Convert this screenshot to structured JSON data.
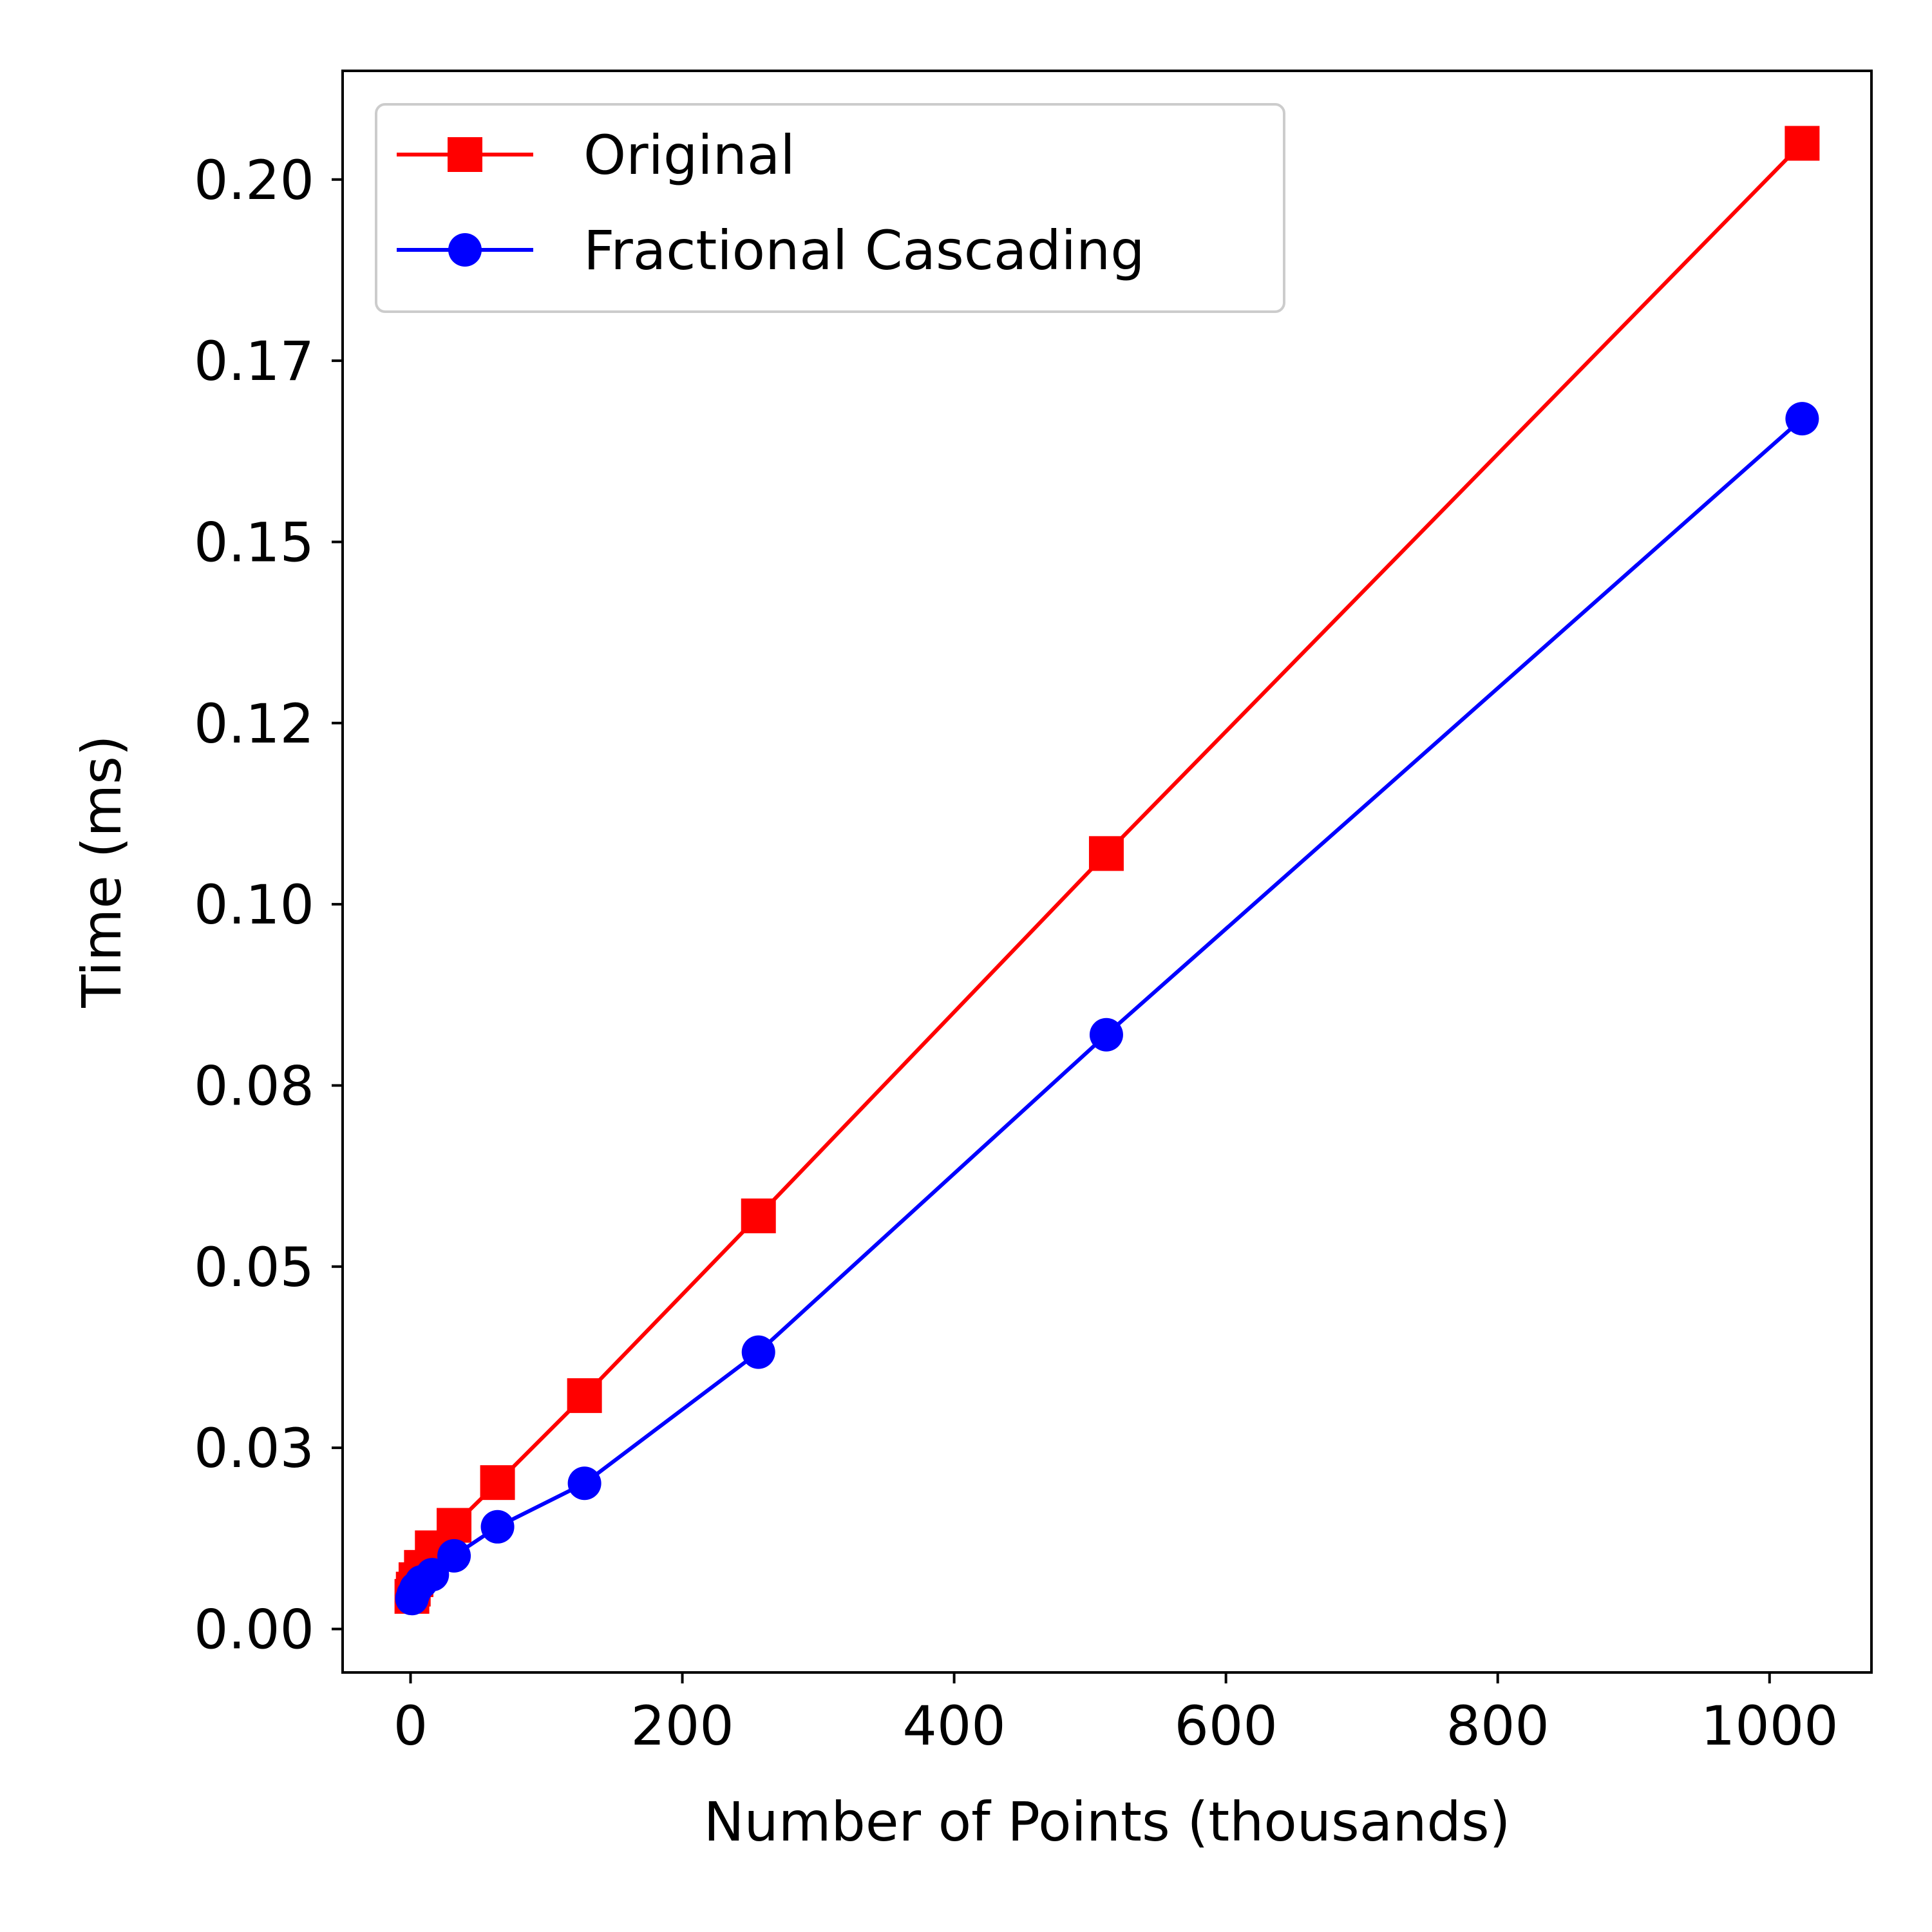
{
  "chart_data": {
    "type": "line",
    "xlabel": "Number of Points (thousands)",
    "ylabel": "Time (ms)",
    "xlim": [
      -50,
      1075
    ],
    "ylim": [
      -0.006,
      0.215
    ],
    "xticks": [
      0,
      200,
      400,
      600,
      800,
      1000
    ],
    "xtick_labels": [
      "0",
      "200",
      "400",
      "600",
      "800",
      "1000"
    ],
    "yticks": [
      0,
      0.025,
      0.05,
      0.075,
      0.1,
      0.125,
      0.15,
      0.175,
      0.2
    ],
    "ytick_labels": [
      "0.00",
      "0.03",
      "0.05",
      "0.08",
      "0.10",
      "0.12",
      "0.15",
      "0.17",
      "0.20"
    ],
    "grid": false,
    "legend_position": "upper-left",
    "series": [
      {
        "name": "Original",
        "color": "#ff0000",
        "marker": "square",
        "x": [
          1,
          2,
          4,
          8,
          16,
          32,
          64,
          128,
          256,
          512,
          1024
        ],
        "y": [
          0.0045,
          0.0055,
          0.0068,
          0.0085,
          0.0112,
          0.0143,
          0.0202,
          0.0322,
          0.057,
          0.107,
          0.205
        ]
      },
      {
        "name": "Fractional Cascading",
        "color": "#0000ff",
        "marker": "circle",
        "x": [
          1,
          2,
          4,
          8,
          16,
          32,
          64,
          128,
          256,
          512,
          1024
        ],
        "y": [
          0.0042,
          0.0048,
          0.0056,
          0.0065,
          0.0075,
          0.0101,
          0.0141,
          0.0201,
          0.0382,
          0.082,
          0.167
        ]
      }
    ]
  }
}
